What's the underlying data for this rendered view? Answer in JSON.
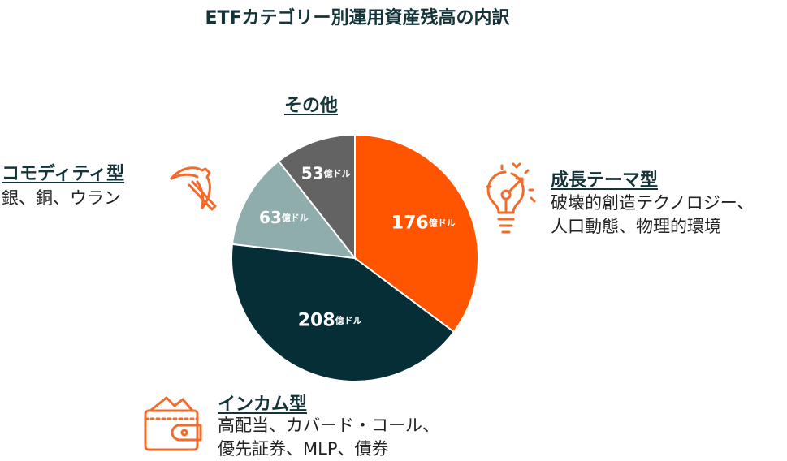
{
  "title": "ETFカテゴリー別運用資産残高の内訳",
  "categories": {
    "growth": {
      "title": "成長テーマ型",
      "desc1": "破壊的創造テクノロジー、",
      "desc2": "人口動態、物理的環境"
    },
    "income": {
      "title": "インカム型",
      "desc1": "高配当、カバード・コール、",
      "desc2": "優先証券、MLP、債券"
    },
    "commodity": {
      "title": "コモディティ型",
      "desc1": "銀、銅、ウラン"
    },
    "other": {
      "title": "その他"
    }
  },
  "unit": "億ドル",
  "chart_data": {
    "type": "pie",
    "title": "ETFカテゴリー別運用資産残高の内訳",
    "slices": [
      {
        "label": "成長テーマ型",
        "value": 176,
        "display": "176",
        "color": "#ff5500"
      },
      {
        "label": "インカム型",
        "value": 208,
        "display": "208",
        "color": "#062e37"
      },
      {
        "label": "コモディティ型",
        "value": 63,
        "display": "63",
        "color": "#8fadad"
      },
      {
        "label": "その他",
        "value": 53,
        "display": "53",
        "color": "#636363"
      }
    ],
    "value_unit": "億ドル",
    "start_angle_deg": 0,
    "direction": "clockwise"
  }
}
